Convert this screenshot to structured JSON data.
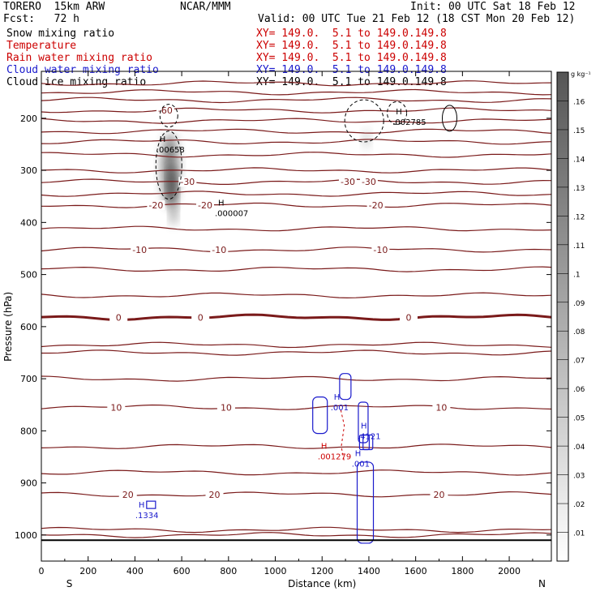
{
  "header": {
    "model": "TORERO  15km ARW",
    "org": "NCAR/MMM",
    "init": "Init: 00 UTC Sat 18 Feb 12",
    "fcst": "Fcst:   72 h",
    "valid": "Valid: 00 UTC Tue 21 Feb 12 (18 CST Mon 20 Feb 12)",
    "fields": [
      {
        "name": "Snow mixing ratio",
        "xy": "XY= 149.0.  5.1 to 149.0.149.8",
        "color": "#000000",
        "xy_color": "#cc0000"
      },
      {
        "name": "Temperature",
        "xy": "XY= 149.0.  5.1 to 149.0.149.8",
        "color": "#cc0000",
        "xy_color": "#cc0000"
      },
      {
        "name": "Rain water mixing ratio",
        "xy": "XY= 149.0.  5.1 to 149.0.149.8",
        "color": "#cc0000",
        "xy_color": "#cc0000"
      },
      {
        "name": "Cloud water mixing ratio",
        "xy": "XY= 149.0.  5.1 to 149.0.149.8",
        "color": "#1a1acc",
        "xy_color": "#1a1acc"
      },
      {
        "name": "Cloud ice mixing ratio",
        "xy": "XY= 149.0.  5.1 to 149.0.149.8",
        "color": "#000000",
        "xy_color": "#000000"
      }
    ]
  },
  "chart_data": {
    "type": "heatmap",
    "xlabel": "Distance (km)",
    "ylabel": "Pressure (hPa)",
    "xlim": [
      0,
      2180
    ],
    "ylim": [
      1050,
      110
    ],
    "x_ticks": [
      0,
      200,
      400,
      600,
      800,
      1000,
      1200,
      1400,
      1600,
      1800,
      2000
    ],
    "y_ticks": [
      200,
      300,
      400,
      500,
      600,
      700,
      800,
      900,
      1000
    ],
    "x_end_labels": {
      "left": "S",
      "right": "N"
    },
    "surface_pressure": 1010,
    "colorbar": {
      "unit": "g kg⁻¹",
      "ticks": [
        0.01,
        0.02,
        0.03,
        0.04,
        0.05,
        0.06,
        0.07,
        0.08,
        0.09,
        0.1,
        0.11,
        0.12,
        0.13,
        0.14,
        0.15,
        0.16
      ],
      "tick_labels": [
        ".01",
        ".02",
        ".03",
        ".04",
        ".05",
        ".06",
        ".07",
        ".08",
        ".09",
        ".1",
        ".11",
        ".12",
        ".13",
        ".14",
        ".15",
        ".16"
      ],
      "max": 0.17
    },
    "temperature_isotherms": [
      {
        "label": "-60",
        "p": 185,
        "labels_at": [
          530
        ]
      },
      {
        "label": "-30",
        "p": 322,
        "labels_at": [
          625,
          1310,
          1400
        ]
      },
      {
        "label": "-20",
        "p": 367,
        "labels_at": [
          490,
          700,
          1430
        ]
      },
      {
        "label": "-10",
        "p": 452,
        "labels_at": [
          420,
          760,
          1450
        ]
      },
      {
        "label": "0",
        "p": 582,
        "labels_at": [
          330,
          680,
          1570
        ],
        "bold": true
      },
      {
        "label": "10",
        "p": 755,
        "labels_at": [
          320,
          790,
          1710
        ]
      },
      {
        "label": "20",
        "p": 922,
        "labels_at": [
          370,
          740,
          1700
        ]
      }
    ],
    "extra_isotherm_pressures": [
      133,
      150,
      165,
      205,
      225,
      245,
      270,
      300,
      345,
      412,
      490,
      540,
      635,
      650,
      700,
      830,
      880,
      990,
      1000
    ],
    "maxima": [
      {
        "label": ".00658",
        "x": 540,
        "p": 258,
        "color": "#000000"
      },
      {
        "label": ".000007",
        "x": 790,
        "p": 380,
        "color": "#000000"
      },
      {
        "label": ".002785",
        "x": 1550,
        "p": 205,
        "color": "#000000"
      },
      {
        "label": ".001",
        "x": 1285,
        "p": 753,
        "color": "#1a1acc"
      },
      {
        "label": ".4121",
        "x": 1400,
        "p": 808,
        "color": "#1a1acc"
      },
      {
        "label": ".001279",
        "x": 1230,
        "p": 847,
        "color": "#cc0000"
      },
      {
        "label": ".001",
        "x": 1375,
        "p": 861,
        "color": "#1a1acc"
      },
      {
        "label": ".1334",
        "x": 450,
        "p": 960,
        "color": "#1a1acc"
      }
    ],
    "snow_shading": [
      {
        "x": 550,
        "p": 300,
        "rx": 35,
        "rp": 70,
        "value": 0.12
      },
      {
        "x": 560,
        "p": 330,
        "rx": 18,
        "rp": 38,
        "value": 0.16
      },
      {
        "x": 565,
        "p": 380,
        "rx": 14,
        "rp": 25,
        "value": 0.1
      },
      {
        "x": 1390,
        "p": 240,
        "rx": 14,
        "rp": 18,
        "value": 0.05
      }
    ]
  }
}
